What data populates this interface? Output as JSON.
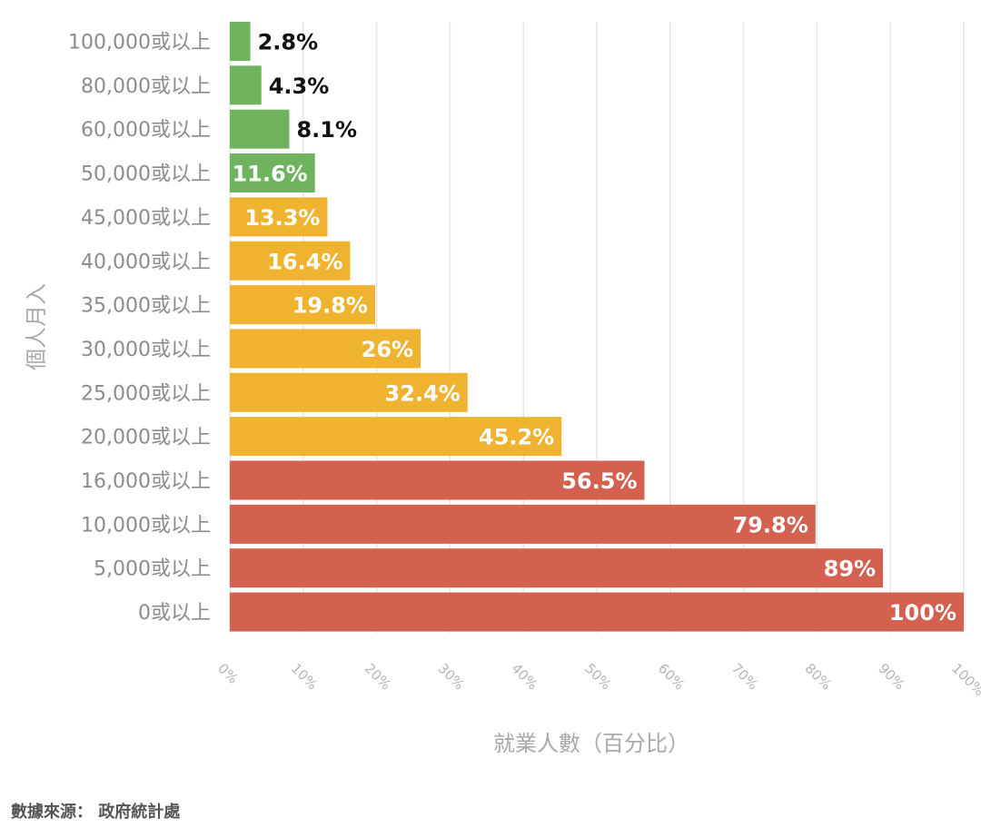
{
  "chart_data": {
    "type": "bar",
    "orientation": "horizontal",
    "title": "",
    "xlabel": "就業人數（百分比）",
    "ylabel": "個人月入",
    "xlim": [
      0,
      100
    ],
    "grid": true,
    "categories": [
      "100,000或以上",
      "80,000或以上",
      "60,000或以上",
      "50,000或以上",
      "45,000或以上",
      "40,000或以上",
      "35,000或以上",
      "30,000或以上",
      "25,000或以上",
      "20,000或以上",
      "16,000或以上",
      "10,000或以上",
      "5,000或以上",
      "0或以上"
    ],
    "values": [
      2.8,
      4.3,
      8.1,
      11.6,
      13.3,
      16.4,
      19.8,
      26,
      32.4,
      45.2,
      56.5,
      79.8,
      89,
      100
    ],
    "value_labels": [
      "2.8%",
      "4.3%",
      "8.1%",
      "11.6%",
      "13.3%",
      "16.4%",
      "19.8%",
      "26%",
      "32.4%",
      "45.2%",
      "56.5%",
      "79.8%",
      "89%",
      "100%"
    ],
    "bar_colors": [
      "#70b35f",
      "#70b35f",
      "#70b35f",
      "#70b35f",
      "#efb32f",
      "#efb32f",
      "#efb32f",
      "#efb32f",
      "#efb32f",
      "#efb32f",
      "#d4604f",
      "#d4604f",
      "#d4604f",
      "#d4604f"
    ],
    "x_ticks": [
      0,
      10,
      20,
      30,
      40,
      50,
      60,
      70,
      80,
      90,
      100
    ],
    "x_tick_labels": [
      "0%",
      "10%",
      "20%",
      "30%",
      "40%",
      "50%",
      "60%",
      "70%",
      "80%",
      "90%",
      "100%"
    ]
  },
  "source": "數據來源： 政府統計處"
}
